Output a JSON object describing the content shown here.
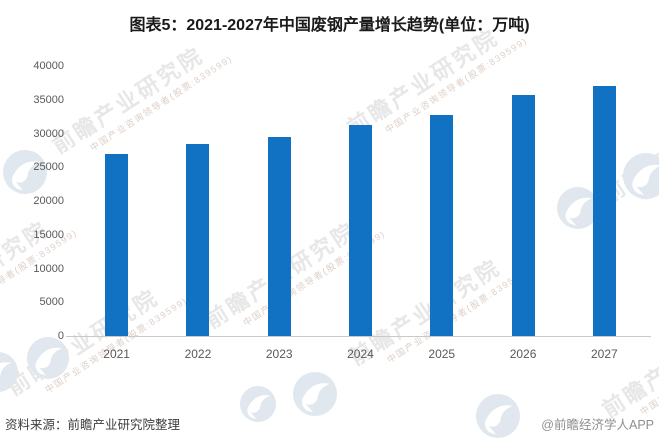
{
  "title": "图表5：2021-2027年中国废钢产量增长趋势(单位：万吨)",
  "watermark": {
    "main": "前瞻产业研究院",
    "sub": "中国产业咨询领导者(股票:839599)"
  },
  "footer": {
    "source": "资料来源：前瞻产业研究院整理",
    "brand": "@前瞻经济学人APP"
  },
  "colors": {
    "bar": "#1172c3",
    "title_text": "#1a1a1a",
    "axis_text": "#595959",
    "axis_line": "#c9c9c9",
    "watermark_text": "#e7e7e7",
    "watermark_sub": "#decfc7",
    "watermark_circle": "#e1e7ee"
  },
  "chart_data": {
    "type": "bar",
    "title": "图表5：2021-2027年中国废钢产量增长趋势(单位：万吨)",
    "unit": "万吨",
    "categories": [
      "2021",
      "2022",
      "2023",
      "2024",
      "2025",
      "2026",
      "2027"
    ],
    "values": [
      27000,
      28500,
      29500,
      31200,
      32700,
      35700,
      37000
    ],
    "xlabel": "",
    "ylabel": "",
    "ylim": [
      0,
      40000
    ],
    "ytick_step": 5000,
    "yticks": [
      0,
      5000,
      10000,
      15000,
      20000,
      25000,
      30000,
      35000,
      40000
    ],
    "grid": false,
    "legend": false,
    "bar_color": "#1172c3"
  }
}
